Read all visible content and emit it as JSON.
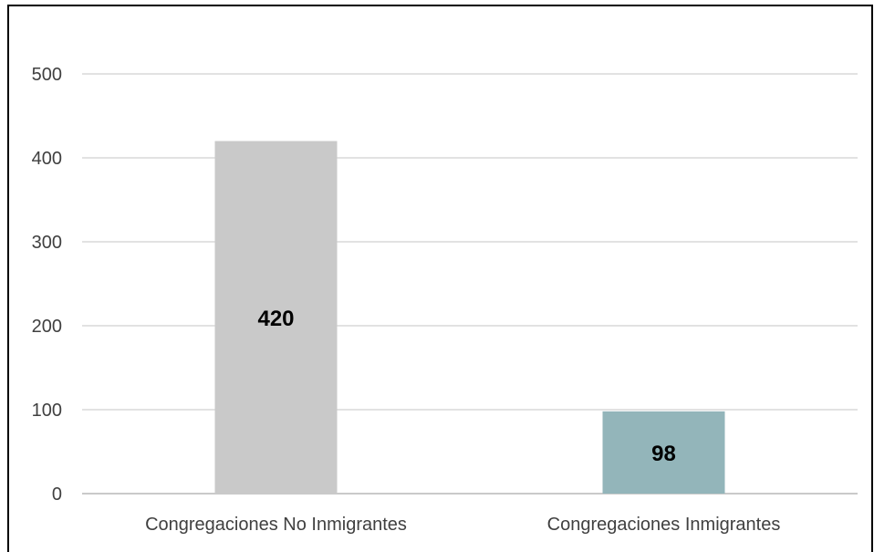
{
  "chart_data": {
    "type": "bar",
    "categories": [
      "Congregaciones No Inmigrantes",
      "Congregaciones Inmigrantes"
    ],
    "values": [
      420,
      98
    ],
    "data_labels": [
      "420",
      "98"
    ],
    "yticks": [
      "0",
      "100",
      "200",
      "300",
      "400",
      "500"
    ],
    "ylim": [
      0,
      500
    ],
    "grid": true,
    "legend": "none",
    "colors": {
      "bars": [
        "#c9c9c9",
        "#93b5ba"
      ],
      "grid": "#d9d9d9",
      "axis_text": "#404040"
    }
  }
}
